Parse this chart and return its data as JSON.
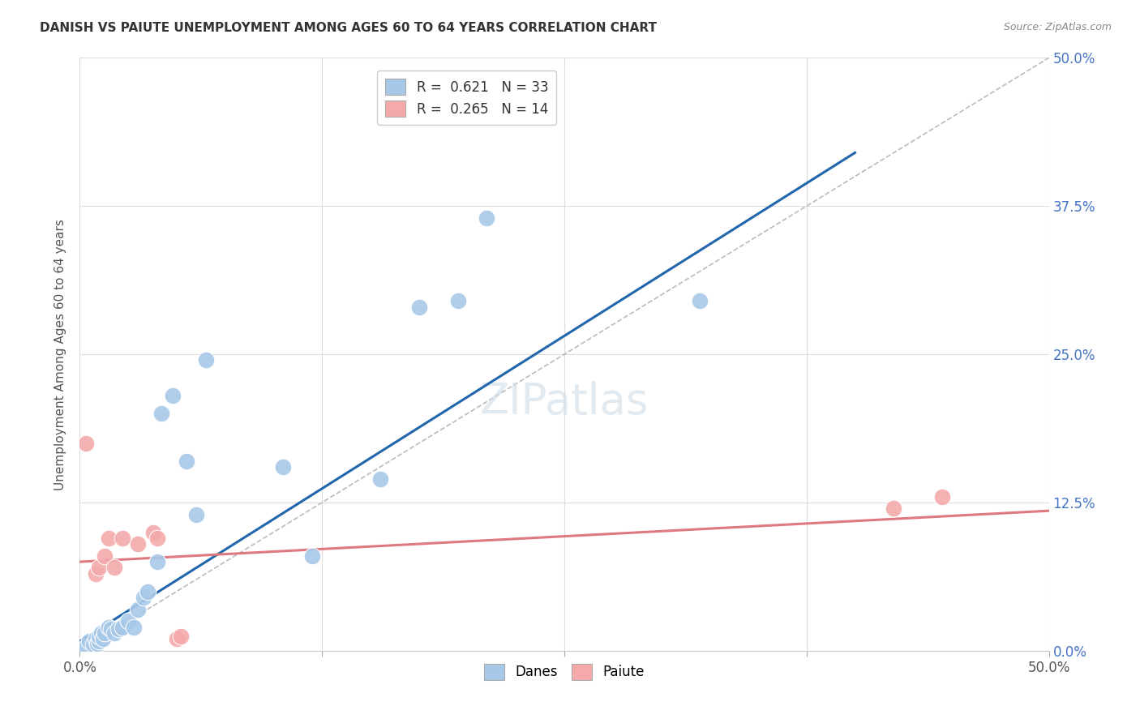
{
  "title": "DANISH VS PAIUTE UNEMPLOYMENT AMONG AGES 60 TO 64 YEARS CORRELATION CHART",
  "source": "Source: ZipAtlas.com",
  "ylabel": "Unemployment Among Ages 60 to 64 years",
  "xlim": [
    0,
    0.5
  ],
  "ylim": [
    0,
    0.5
  ],
  "xticks": [
    0.0,
    0.125,
    0.25,
    0.375,
    0.5
  ],
  "yticks": [
    0.0,
    0.125,
    0.25,
    0.375,
    0.5
  ],
  "right_ytick_labels": [
    "0.0%",
    "12.5%",
    "25.0%",
    "37.5%",
    "50.0%"
  ],
  "bottom_xtick_labels": [
    "0.0%",
    "",
    "",
    "",
    "50.0%"
  ],
  "danes_R": 0.621,
  "danes_N": 33,
  "paiute_R": 0.265,
  "paiute_N": 14,
  "danes_color": "#a8c8e8",
  "paiute_color": "#f4aaaa",
  "danes_line_color": "#2166ac",
  "paiute_line_color": "#e07880",
  "diagonal_color": "#bbbbbb",
  "background_color": "#ffffff",
  "grid_color": "#dddddd",
  "danes_scatter_x": [
    0.003,
    0.005,
    0.007,
    0.008,
    0.009,
    0.01,
    0.01,
    0.011,
    0.012,
    0.013,
    0.015,
    0.016,
    0.018,
    0.02,
    0.022,
    0.025,
    0.028,
    0.03,
    0.033,
    0.035,
    0.04,
    0.042,
    0.048,
    0.055,
    0.06,
    0.065,
    0.105,
    0.12,
    0.155,
    0.175,
    0.195,
    0.21,
    0.32
  ],
  "danes_scatter_y": [
    0.003,
    0.008,
    0.005,
    0.01,
    0.006,
    0.008,
    0.012,
    0.015,
    0.01,
    0.015,
    0.02,
    0.018,
    0.015,
    0.018,
    0.02,
    0.025,
    0.02,
    0.035,
    0.045,
    0.05,
    0.075,
    0.2,
    0.215,
    0.16,
    0.115,
    0.245,
    0.155,
    0.08,
    0.145,
    0.29,
    0.295,
    0.365,
    0.295
  ],
  "paiute_scatter_x": [
    0.003,
    0.008,
    0.01,
    0.013,
    0.015,
    0.018,
    0.022,
    0.03,
    0.038,
    0.04,
    0.05,
    0.052,
    0.42,
    0.445
  ],
  "paiute_scatter_y": [
    0.175,
    0.065,
    0.07,
    0.08,
    0.095,
    0.07,
    0.095,
    0.09,
    0.1,
    0.095,
    0.01,
    0.012,
    0.12,
    0.13
  ],
  "danes_reg": [
    0.0,
    0.008,
    0.4,
    0.42
  ],
  "paiute_reg": [
    0.0,
    0.075,
    0.5,
    0.118
  ],
  "diagonal": [
    0.0,
    0.0,
    0.5,
    0.5
  ]
}
